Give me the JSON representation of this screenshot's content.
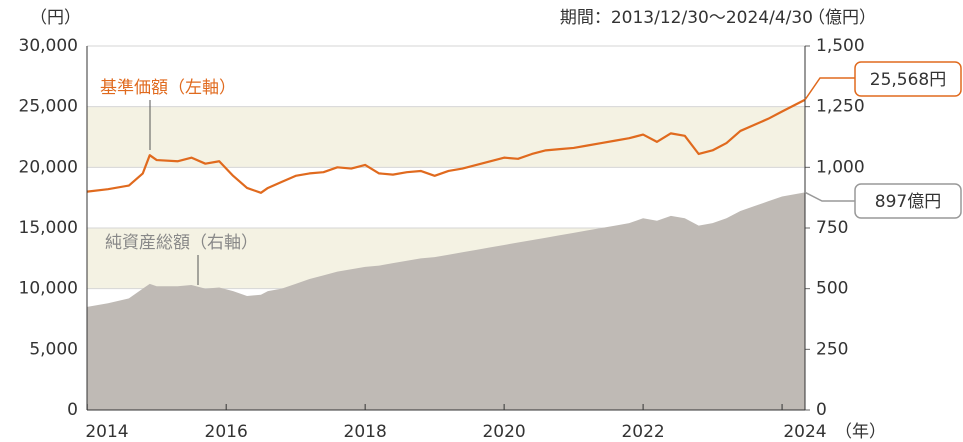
{
  "chart_data": {
    "type": "line",
    "unit_left": "（円）",
    "unit_right": "（億円）",
    "period": "期間：2013/12/30～2024/4/30",
    "x_unit": "（年）",
    "x": [
      2014.0,
      2014.3,
      2014.6,
      2014.8,
      2014.9,
      2015.0,
      2015.3,
      2015.5,
      2015.7,
      2015.9,
      2016.1,
      2016.3,
      2016.5,
      2016.6,
      2016.8,
      2017.0,
      2017.2,
      2017.4,
      2017.6,
      2017.8,
      2018.0,
      2018.2,
      2018.4,
      2018.6,
      2018.8,
      2019.0,
      2019.2,
      2019.4,
      2019.6,
      2019.8,
      2020.0,
      2020.2,
      2020.4,
      2020.6,
      2020.8,
      2021.0,
      2021.2,
      2021.4,
      2021.6,
      2021.8,
      2022.0,
      2022.2,
      2022.4,
      2022.6,
      2022.8,
      2023.0,
      2023.2,
      2023.4,
      2023.6,
      2023.8,
      2024.0,
      2024.33
    ],
    "series": [
      {
        "name": "基準価額（左軸）",
        "color": "#e06a1e",
        "kind": "line",
        "values": [
          18000,
          18200,
          18500,
          19500,
          21000,
          20600,
          20500,
          20800,
          20300,
          20500,
          19300,
          18300,
          17900,
          18300,
          18800,
          19300,
          19500,
          19600,
          20000,
          19900,
          20200,
          19500,
          19400,
          19600,
          19700,
          19300,
          19700,
          19900,
          20200,
          20500,
          20800,
          20700,
          21100,
          21400,
          21500,
          21600,
          21800,
          22000,
          22200,
          22400,
          22700,
          22100,
          22800,
          22600,
          21100,
          21400,
          22000,
          23000,
          23500,
          24000,
          24600,
          25568
        ],
        "end_label": "25,568円"
      },
      {
        "name": "純資産総額（右軸）",
        "color": "#bfbab5",
        "kind": "area",
        "axis": "y2",
        "values": [
          425,
          440,
          460,
          500,
          520,
          510,
          510,
          515,
          500,
          505,
          490,
          470,
          475,
          490,
          500,
          520,
          540,
          555,
          570,
          580,
          590,
          595,
          605,
          615,
          625,
          630,
          640,
          650,
          660,
          670,
          680,
          690,
          700,
          710,
          720,
          730,
          740,
          750,
          760,
          770,
          790,
          780,
          800,
          790,
          760,
          770,
          790,
          820,
          840,
          860,
          880,
          897
        ],
        "end_label": "897億円"
      }
    ],
    "xlim": [
      2013.997,
      2024.33
    ],
    "xticks": [
      2014,
      2016,
      2018,
      2020,
      2022,
      2024
    ],
    "ylim": [
      0,
      30000
    ],
    "yticks": [
      0,
      {
        "value": 5000,
        "label": "5,000"
      },
      {
        "value": 10000,
        "label": "10,000"
      },
      {
        "value": 15000,
        "label": "15,000"
      },
      {
        "value": 20000,
        "label": "20,000"
      },
      {
        "value": 25000,
        "label": "25,000"
      },
      {
        "value": 30000,
        "label": "30,000"
      }
    ],
    "y2lim": [
      0,
      1500
    ],
    "y2ticks": [
      0,
      250,
      500,
      750,
      {
        "value": 1000,
        "label": "1,000"
      },
      {
        "value": 1250,
        "label": "1,250"
      },
      {
        "value": 1500,
        "label": "1,500"
      }
    ],
    "grid": true
  }
}
